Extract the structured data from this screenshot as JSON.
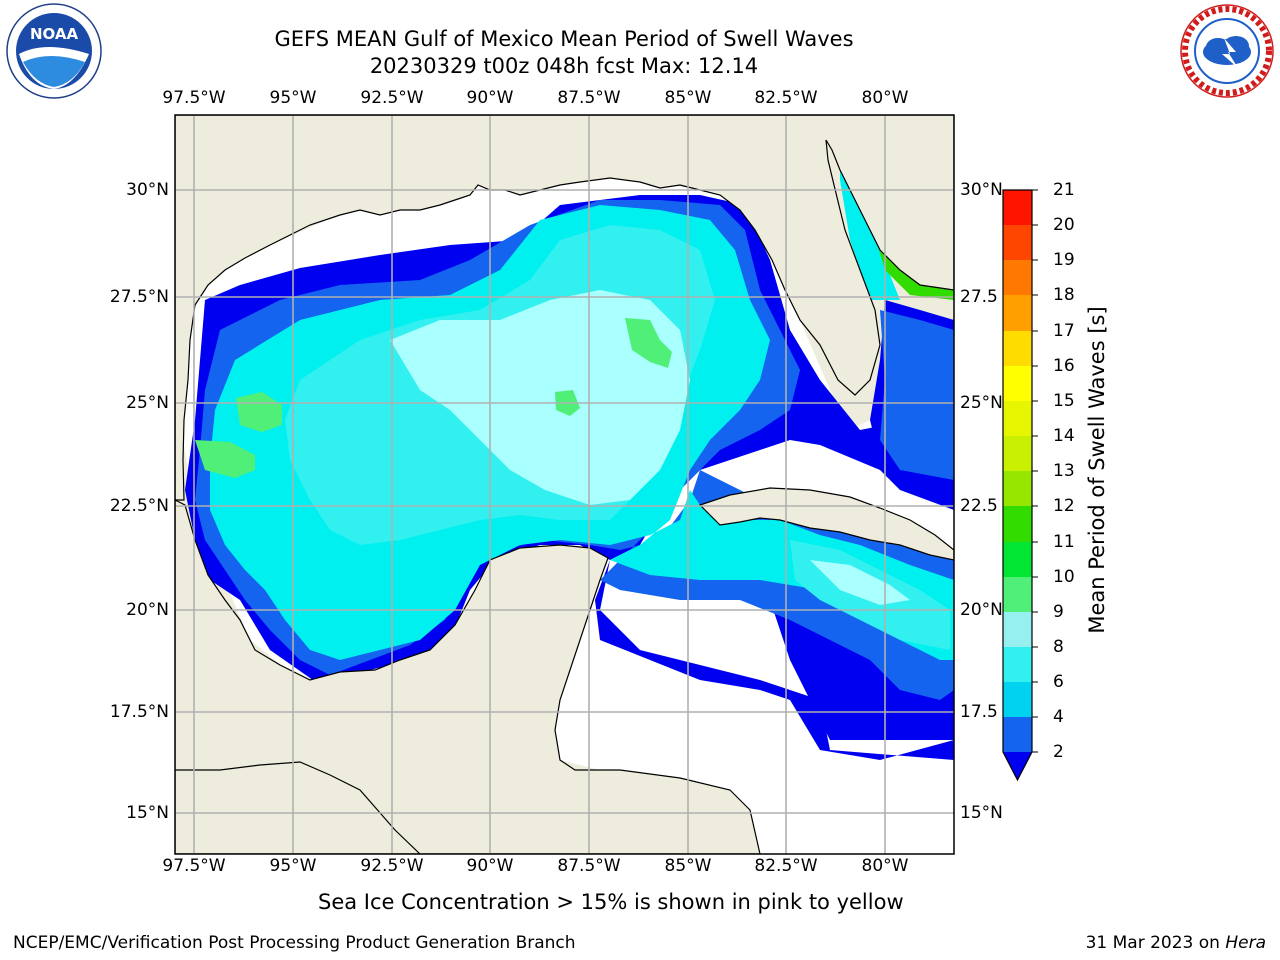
{
  "title": {
    "line1": "GEFS MEAN Gulf of Mexico Mean Period of Swell Waves",
    "line2": "20230329 t00z 048h fcst   Max: 12.14"
  },
  "logos": {
    "left": {
      "text": "NOAA",
      "ring_text": "NATIONAL OCEANIC AND ATMOSPHERIC ADMINISTRATION · U.S. DEPARTMENT OF COMMERCE"
    },
    "right": {
      "ring_text": "NATIONAL WEATHER SERVICE"
    }
  },
  "map": {
    "lon_ticks": [
      "97.5°W",
      "95°W",
      "92.5°W",
      "90°W",
      "87.5°W",
      "85°W",
      "82.5°W",
      "80°W"
    ],
    "lat_ticks_left": [
      "30°N",
      "27.5°N",
      "25°N",
      "22.5°N",
      "20°N",
      "17.5°N",
      "15°N"
    ],
    "lat_ticks_right": [
      "30°N",
      "27.5",
      "25°N",
      "22.5",
      "20°N",
      "17.5",
      "15°N"
    ],
    "lon_range": [
      -98,
      -78.5
    ],
    "lat_range": [
      14,
      31.8
    ],
    "colors": {
      "land": "#eeecdc",
      "grid": "#b0b0b0",
      "ocean_nodata": "#ffffff"
    }
  },
  "colorbar": {
    "label": "Mean Period of Swell Waves [s]",
    "ticks": [
      "2",
      "4",
      "6",
      "8",
      "9",
      "10",
      "11",
      "12",
      "13",
      "14",
      "15",
      "16",
      "17",
      "18",
      "19",
      "20",
      "21"
    ],
    "colors": [
      "#1464f0",
      "#00d2f0",
      "#32f0f0",
      "#96f0f0",
      "#aaffff",
      "#50f078",
      "#00e632",
      "#32dc00",
      "#96e600",
      "#c8f000",
      "#e6f500",
      "#ffff00",
      "#ffdc00",
      "#ffa000",
      "#ff7800",
      "#ff4600",
      "#ff1400",
      "#e60000"
    ],
    "extend_min_color": "#0000f0"
  },
  "note": "Sea Ice Concentration > 15% is shown in pink to yellow",
  "footer": {
    "left": "NCEP/EMC/Verification Post Processing Product Generation Branch",
    "right_date": "31 Mar 2023 on ",
    "right_host": "Hera"
  }
}
